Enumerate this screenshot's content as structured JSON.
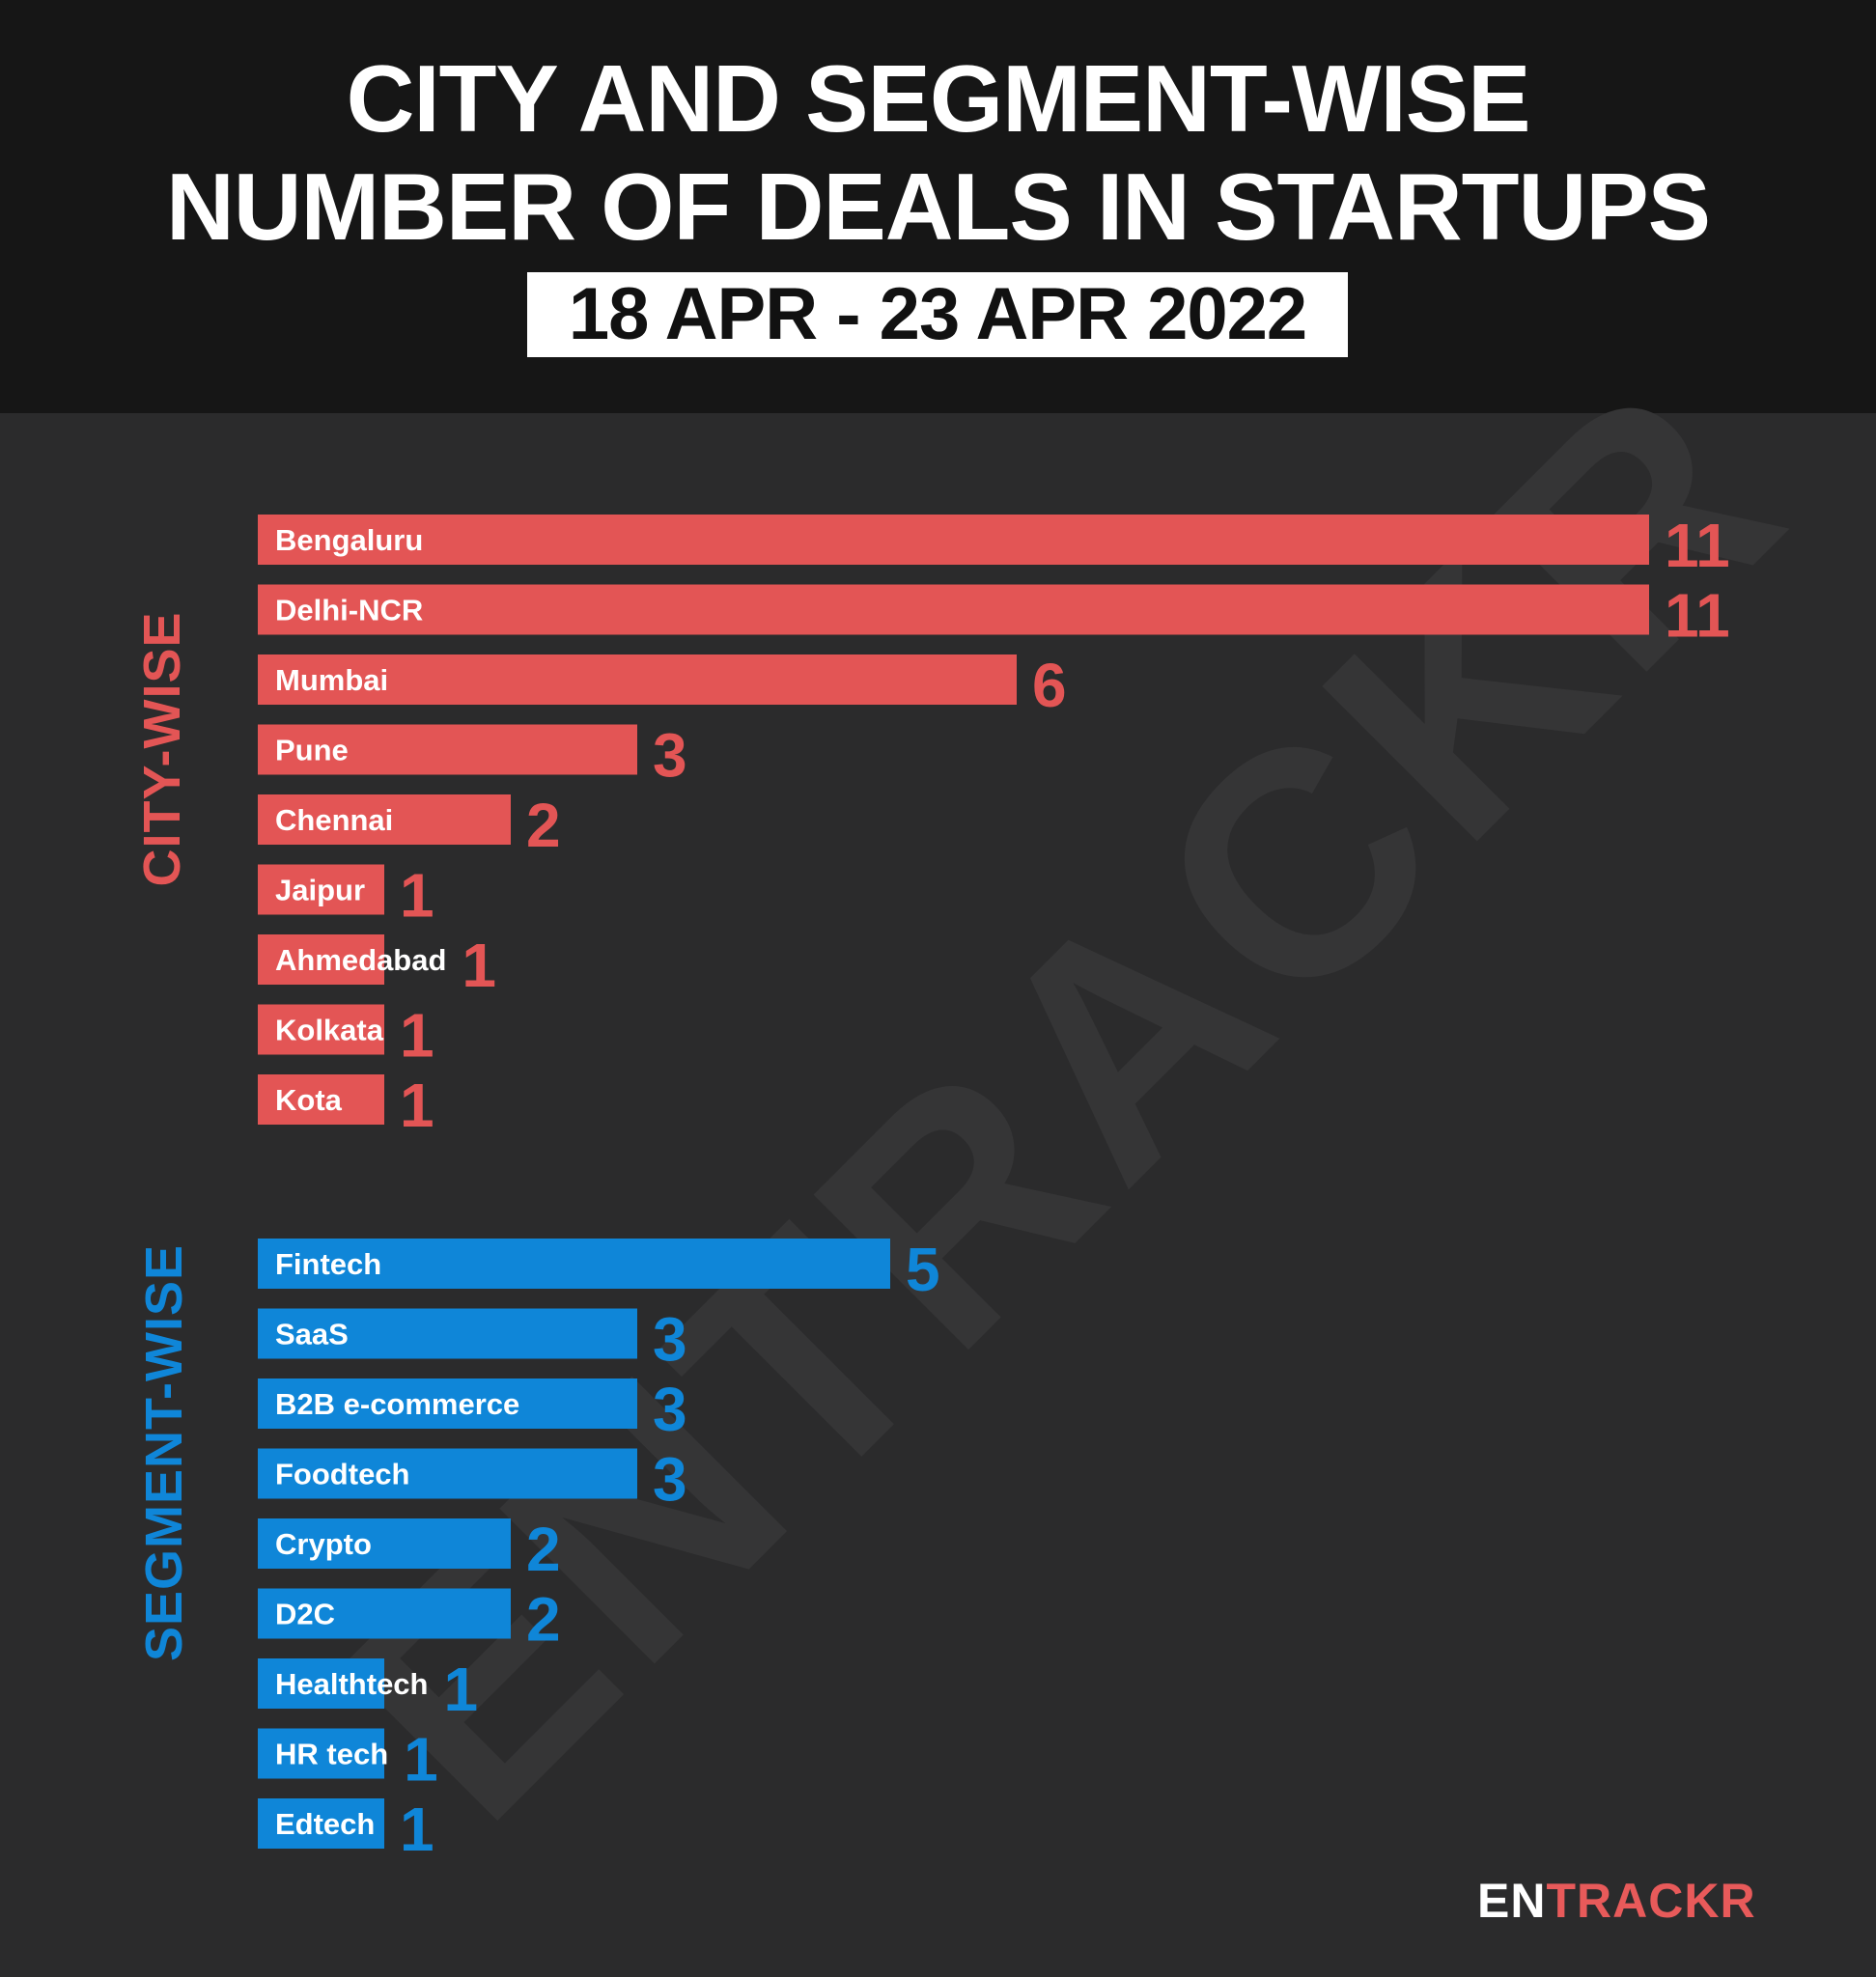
{
  "title_line1": "CITY AND SEGMENT-WISE",
  "title_line2": "NUMBER OF DEALS IN STARTUPS",
  "date_range": "18 APR - 23 APR 2022",
  "watermark": "ENTRACKR",
  "logo": {
    "part1": "EN",
    "part2": "TRACKR"
  },
  "colors": {
    "city": "#e35555",
    "segment": "#0f86d8",
    "background": "#2b2b2c",
    "header": "#161616"
  },
  "chart_data": [
    {
      "type": "bar",
      "orientation": "horizontal",
      "section_label": "CITY-WISE",
      "categories": [
        "Bengaluru",
        "Delhi-NCR",
        "Mumbai",
        "Pune",
        "Chennai",
        "Jaipur",
        "Ahmedabad",
        "Kolkata",
        "Kota"
      ],
      "values": [
        11,
        11,
        6,
        3,
        2,
        1,
        1,
        1,
        1
      ],
      "color": "#e35555"
    },
    {
      "type": "bar",
      "orientation": "horizontal",
      "section_label": "SEGMENT-WISE",
      "categories": [
        "Fintech",
        "SaaS",
        "B2B e-commerce",
        "Foodtech",
        "Crypto",
        "D2C",
        "Healthtech",
        "HR tech",
        "Edtech"
      ],
      "values": [
        5,
        3,
        3,
        3,
        2,
        2,
        1,
        1,
        1
      ],
      "color": "#0f86d8"
    }
  ]
}
